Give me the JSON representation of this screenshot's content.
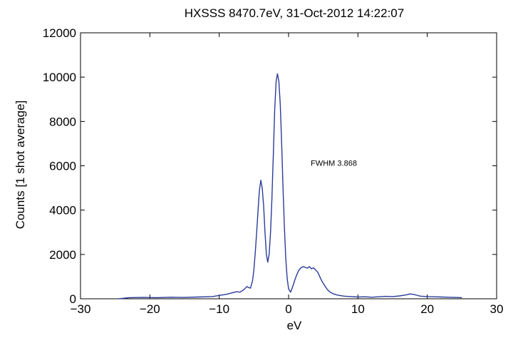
{
  "chart_data": {
    "type": "line",
    "title": "HXSSS  8470.7eV, 31-Oct-2012 14:22:07",
    "xlabel": "eV",
    "ylabel": "Counts [1 shot average]",
    "xlim": [
      -30,
      30
    ],
    "ylim": [
      0,
      12000
    ],
    "xticks": [
      -30,
      -20,
      -10,
      0,
      10,
      20,
      30
    ],
    "yticks": [
      0,
      2000,
      4000,
      6000,
      8000,
      10000,
      12000
    ],
    "grid": false,
    "line_color": "#2b3c9a",
    "annotations": [
      {
        "text": "FWHM 3.868",
        "x": 3.2,
        "y": 6000
      }
    ],
    "series": [
      {
        "x": [
          -24.5,
          -23,
          -21,
          -19,
          -17,
          -15,
          -13,
          -11,
          -10,
          -9,
          -8,
          -7.5,
          -7,
          -6.5,
          -6,
          -5.7,
          -5.5,
          -5.2,
          -5,
          -4.8,
          -4.6,
          -4.4,
          -4.2,
          -4.0,
          -3.8,
          -3.6,
          -3.4,
          -3.2,
          -3.0,
          -2.8,
          -2.6,
          -2.4,
          -2.2,
          -2.0,
          -1.8,
          -1.6,
          -1.4,
          -1.2,
          -1.0,
          -0.8,
          -0.6,
          -0.4,
          -0.2,
          0,
          0.3,
          0.6,
          0.9,
          1.2,
          1.5,
          1.8,
          2.1,
          2.4,
          2.7,
          3.0,
          3.3,
          3.6,
          3.9,
          4.2,
          4.5,
          4.8,
          5.1,
          5.4,
          5.7,
          6.0,
          6.5,
          7,
          7.5,
          8,
          9,
          10,
          11,
          12,
          13,
          14,
          15,
          16,
          17,
          17.5,
          18,
          18.5,
          19,
          20,
          21,
          22,
          23,
          24,
          25
        ],
        "y": [
          0,
          50,
          60,
          50,
          70,
          60,
          80,
          100,
          150,
          200,
          280,
          320,
          300,
          400,
          550,
          500,
          480,
          800,
          1300,
          2100,
          3000,
          4000,
          4900,
          5350,
          5000,
          4200,
          3000,
          2000,
          1650,
          2000,
          3000,
          4500,
          6500,
          8500,
          9800,
          10150,
          9800,
          8800,
          7000,
          5000,
          3200,
          1800,
          900,
          450,
          300,
          550,
          850,
          1100,
          1300,
          1400,
          1450,
          1420,
          1380,
          1450,
          1350,
          1400,
          1300,
          1200,
          1000,
          800,
          650,
          500,
          380,
          300,
          220,
          170,
          140,
          120,
          100,
          80,
          90,
          70,
          90,
          110,
          100,
          130,
          180,
          220,
          200,
          160,
          120,
          100,
          90,
          80,
          70,
          60,
          50
        ]
      }
    ]
  }
}
